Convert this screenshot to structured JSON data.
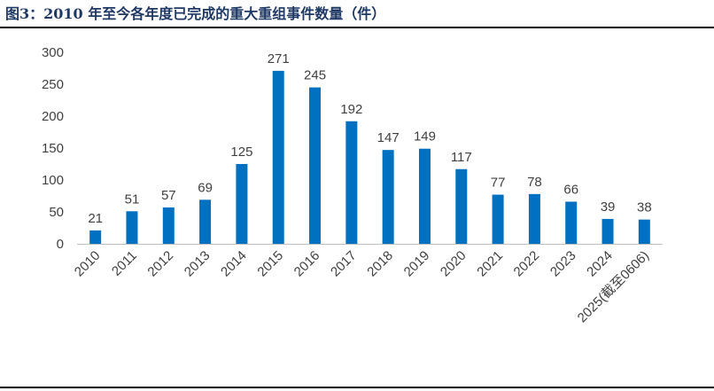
{
  "header": {
    "title": "图3：2010 年至今各年度已完成的重大重组事件数量（件）"
  },
  "chart_data": {
    "type": "bar",
    "title": "图3：2010 年至今各年度已完成的重大重组事件数量（件）",
    "xlabel": "",
    "ylabel": "",
    "categories": [
      "2010",
      "2011",
      "2012",
      "2013",
      "2014",
      "2015",
      "2016",
      "2017",
      "2018",
      "2019",
      "2020",
      "2021",
      "2022",
      "2023",
      "2024",
      "2025(截至0606)"
    ],
    "values": [
      21,
      51,
      57,
      69,
      125,
      271,
      245,
      192,
      147,
      149,
      117,
      77,
      78,
      66,
      39,
      38
    ],
    "ylim": [
      0,
      300
    ],
    "yticks": [
      "0",
      "50",
      "100",
      "150",
      "200",
      "250",
      "300"
    ],
    "grid": false,
    "legend": "none",
    "bar_color": "#0070c0"
  }
}
